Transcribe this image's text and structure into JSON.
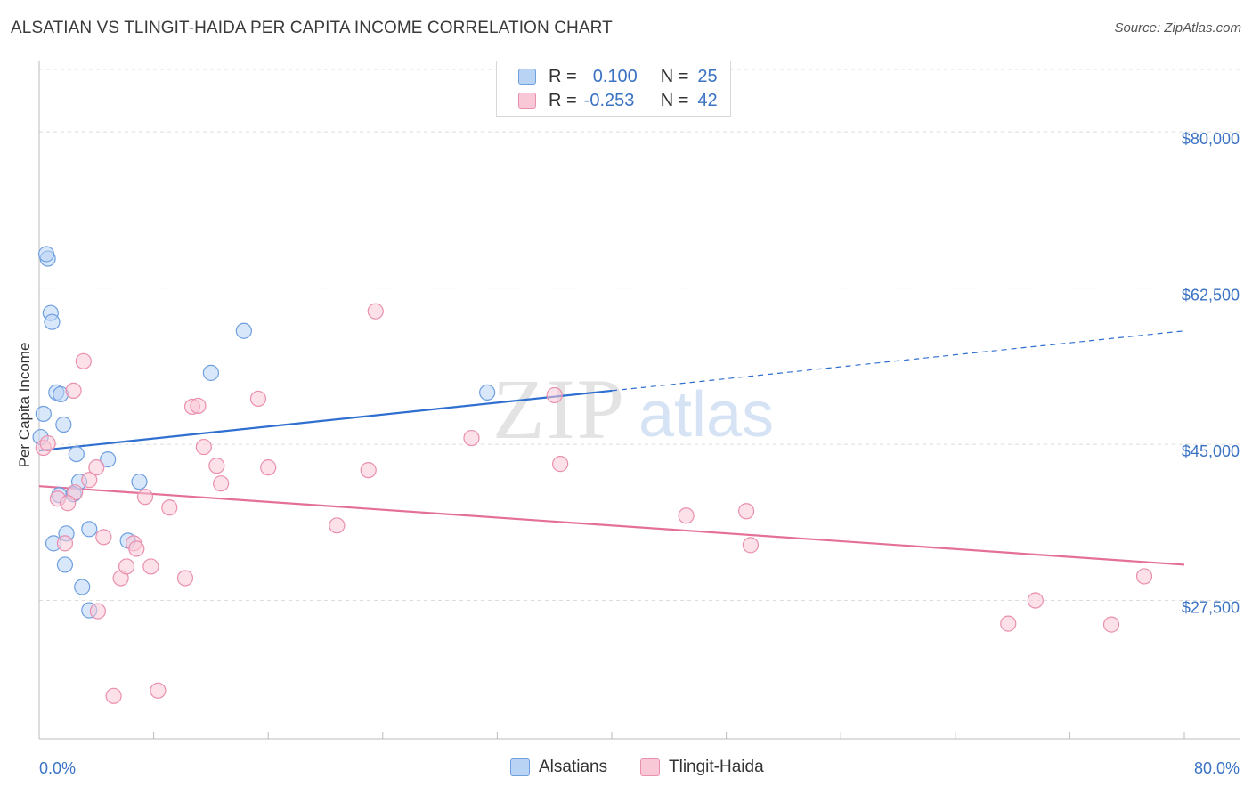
{
  "title": "ALSATIAN VS TLINGIT-HAIDA PER CAPITA INCOME CORRELATION CHART",
  "source": "Source: ZipAtlas.com",
  "watermark": {
    "zip": "ZIP",
    "atlas": "atlas"
  },
  "colors": {
    "blue_fill": "#b9d3f5",
    "blue_stroke": "#6e9fdf",
    "blue_line": "#2f6fcf",
    "pink_fill": "#f9c8d7",
    "pink_stroke": "#ea8fae",
    "pink_line": "#e4709a",
    "axis_text": "#3b73c4",
    "grid": "#dddddd"
  },
  "legend": {
    "rows": [
      {
        "r_label": "R =",
        "r_value": "0.100",
        "n_label": "N =",
        "n_value": "25"
      },
      {
        "r_label": "R =",
        "r_value": "-0.253",
        "n_label": "N =",
        "n_value": "42"
      }
    ]
  },
  "chart_data": {
    "type": "scatter",
    "title": "ALSATIAN VS TLINGIT-HAIDA PER CAPITA INCOME CORRELATION CHART",
    "xlabel": "",
    "ylabel": "Per Capita Income",
    "xlim": [
      0,
      80
    ],
    "ylim": [
      10000,
      85000
    ],
    "x_tick_labels": [
      "0.0%",
      "80.0%"
    ],
    "y_ticks": [
      27500,
      45000,
      62500,
      80000
    ],
    "y_tick_labels": [
      "$27,500",
      "$45,000",
      "$62,500",
      "$80,000"
    ],
    "series": [
      {
        "name": "Alsatians",
        "color": "blue",
        "trend": {
          "x0": 0,
          "y0": 44300,
          "x1": 40,
          "y1": 51000,
          "dash_x1": 80,
          "dash_y1": 57700
        },
        "points": [
          [
            0.1,
            45800
          ],
          [
            0.3,
            48400
          ],
          [
            0.6,
            65800
          ],
          [
            0.5,
            66300
          ],
          [
            0.8,
            59700
          ],
          [
            0.9,
            58700
          ],
          [
            1.2,
            50800
          ],
          [
            1.5,
            50600
          ],
          [
            1.7,
            47200
          ],
          [
            2.6,
            43900
          ],
          [
            2.8,
            40800
          ],
          [
            4.8,
            43300
          ],
          [
            1.4,
            39300
          ],
          [
            2.4,
            39400
          ],
          [
            1.0,
            33900
          ],
          [
            1.9,
            35000
          ],
          [
            3.5,
            35500
          ],
          [
            6.2,
            34200
          ],
          [
            7.0,
            40800
          ],
          [
            1.8,
            31500
          ],
          [
            3.0,
            29000
          ],
          [
            3.5,
            26400
          ],
          [
            12.0,
            53000
          ],
          [
            14.3,
            57700
          ],
          [
            31.3,
            50800
          ]
        ]
      },
      {
        "name": "Tlingit-Haida",
        "color": "pink",
        "trend": {
          "x0": 0,
          "y0": 40300,
          "x1": 80,
          "y1": 31500
        },
        "points": [
          [
            0.3,
            44600
          ],
          [
            0.6,
            45100
          ],
          [
            1.3,
            38900
          ],
          [
            1.8,
            33900
          ],
          [
            2.4,
            51000
          ],
          [
            2.5,
            39600
          ],
          [
            3.1,
            54300
          ],
          [
            3.5,
            41000
          ],
          [
            4.0,
            42400
          ],
          [
            4.5,
            34600
          ],
          [
            5.2,
            16800
          ],
          [
            5.7,
            30000
          ],
          [
            6.1,
            31300
          ],
          [
            6.6,
            33900
          ],
          [
            6.8,
            33300
          ],
          [
            7.4,
            39100
          ],
          [
            7.8,
            31300
          ],
          [
            8.3,
            17400
          ],
          [
            9.1,
            37900
          ],
          [
            10.2,
            30000
          ],
          [
            10.7,
            49200
          ],
          [
            11.1,
            49300
          ],
          [
            11.5,
            44700
          ],
          [
            12.4,
            42600
          ],
          [
            12.7,
            40600
          ],
          [
            15.3,
            50100
          ],
          [
            16.0,
            42400
          ],
          [
            20.8,
            35900
          ],
          [
            23.0,
            42100
          ],
          [
            23.5,
            59900
          ],
          [
            30.2,
            45700
          ],
          [
            36.0,
            50500
          ],
          [
            36.4,
            42800
          ],
          [
            45.2,
            37000
          ],
          [
            49.4,
            37500
          ],
          [
            49.7,
            33700
          ],
          [
            4.1,
            26300
          ],
          [
            67.7,
            24900
          ],
          [
            69.6,
            27500
          ],
          [
            74.9,
            24800
          ],
          [
            77.2,
            30200
          ],
          [
            2.0,
            38400
          ]
        ]
      }
    ]
  },
  "bottom_legend": [
    {
      "label": "Alsatians"
    },
    {
      "label": "Tlingit-Haida"
    }
  ]
}
